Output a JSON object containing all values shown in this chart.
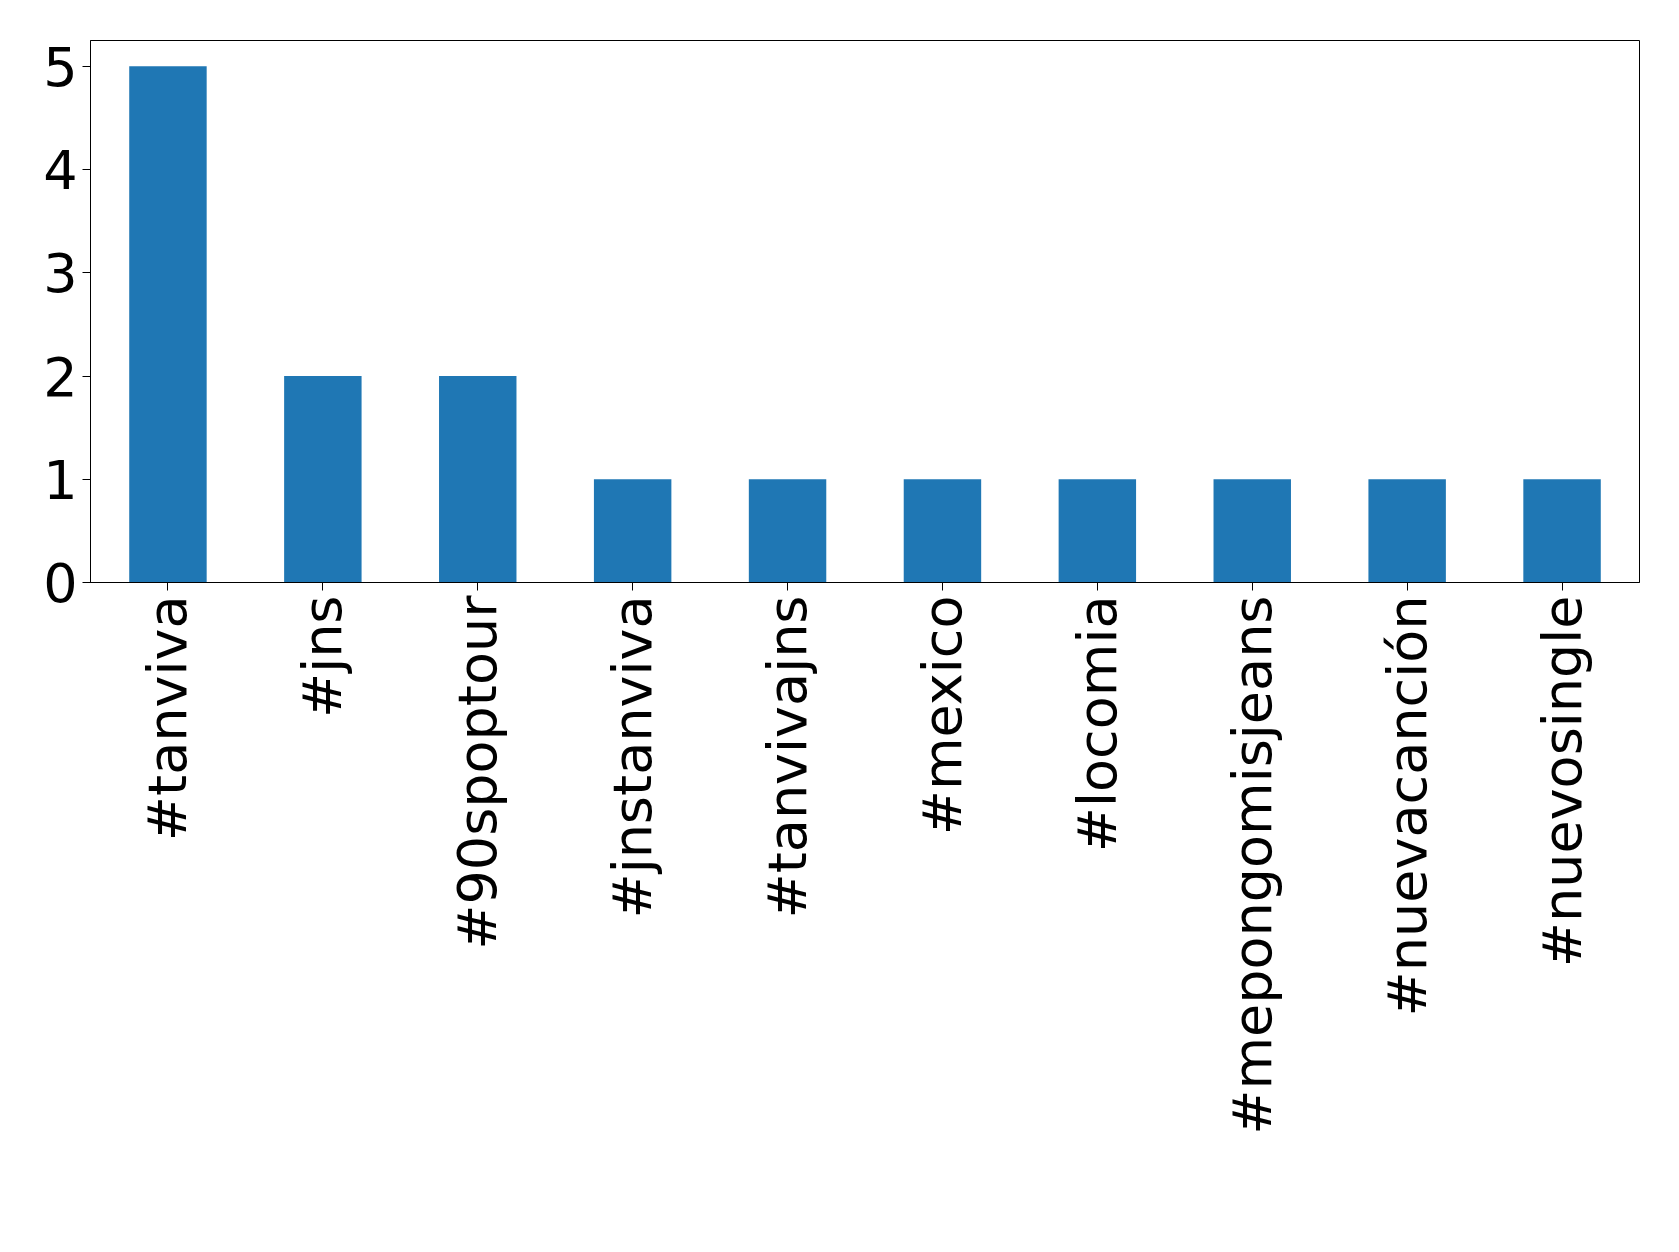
{
  "chart_data": {
    "type": "bar",
    "categories": [
      "#tanviva",
      "#jns",
      "#90spoptour",
      "#jnstanviva",
      "#tanvivajns",
      "#mexico",
      "#locomia",
      "#mepongomisjeans",
      "#nuevacanción",
      "#nuevosingle"
    ],
    "values": [
      5,
      2,
      2,
      1,
      1,
      1,
      1,
      1,
      1,
      1
    ],
    "color": "#1f77b4",
    "ylim": [
      0,
      5.25
    ],
    "yticks": [
      0,
      1,
      2,
      3,
      4,
      5
    ],
    "grid": false
  }
}
